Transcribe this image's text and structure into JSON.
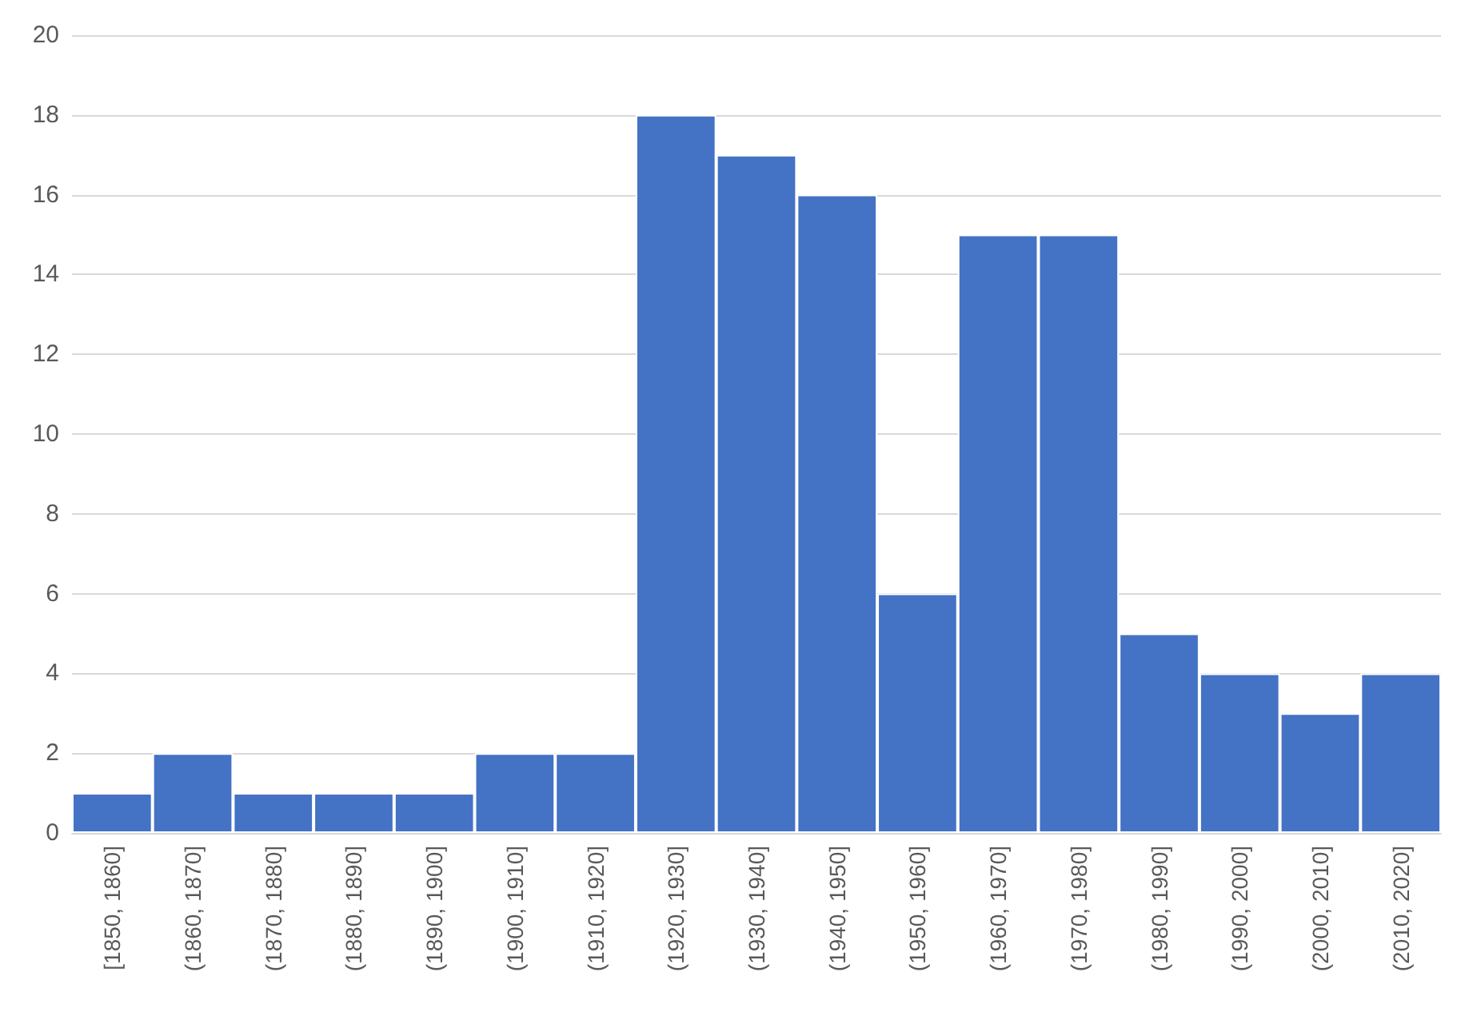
{
  "chart_data": {
    "type": "bar",
    "categories": [
      "[1850, 1860]",
      "(1860, 1870]",
      "(1870, 1880]",
      "(1880, 1890]",
      "(1890, 1900]",
      "(1900, 1910]",
      "(1910, 1920]",
      "(1920, 1930]",
      "(1930, 1940]",
      "(1940, 1950]",
      "(1950, 1960]",
      "(1960, 1970]",
      "(1970, 1980]",
      "(1980, 1990]",
      "(1990, 2000]",
      "(2000, 2010]",
      "(2010, 2020]"
    ],
    "values": [
      1,
      2,
      1,
      1,
      1,
      2,
      2,
      18,
      17,
      16,
      6,
      15,
      15,
      5,
      4,
      3,
      4
    ],
    "color": "#4472c4",
    "ylim": [
      0,
      20
    ],
    "yticks": [
      0,
      2,
      4,
      6,
      8,
      10,
      12,
      14,
      16,
      18,
      20
    ],
    "grid": "y"
  }
}
